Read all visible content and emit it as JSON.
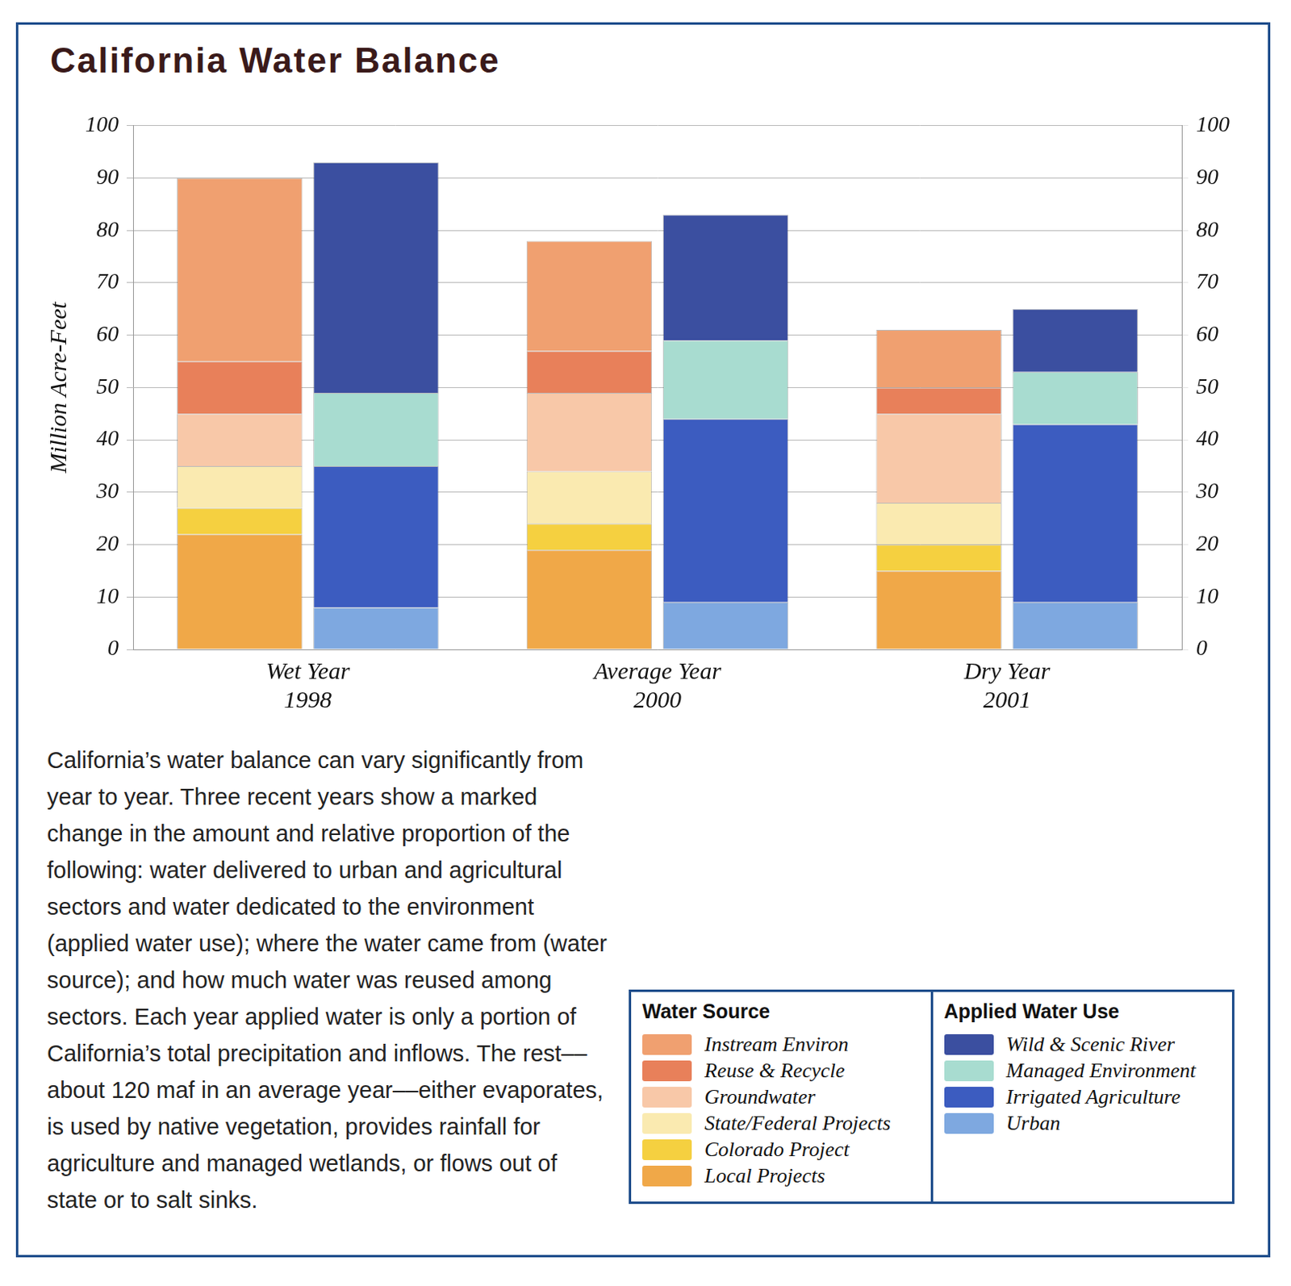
{
  "title": "California Water Balance",
  "caption": "California’s water balance can vary significantly from year to year.  Three recent years show a marked change in the amount and relative proportion of the following:  water delivered to urban and agricultural sectors and water dedicated to the environment (applied water use); where the water came from (water source); and how much water was reused among sectors. Each year applied water is only a portion of California’s total precipitation and inflows. The rest––about 120 maf in an average year––either evaporates, is used by native vegetation, provides rainfall for agriculture and managed wetlands, or flows out of state or to salt sinks.",
  "chart_data": {
    "type": "bar",
    "stacked": true,
    "grid": true,
    "y_label": "Million Acre-Feet",
    "categories": [
      "Wet Year 1998",
      "Average Year 2000",
      "Dry Year 2001"
    ],
    "ylim": [
      0,
      100
    ],
    "yticks": [
      0,
      10,
      20,
      30,
      40,
      50,
      60,
      70,
      80,
      90,
      100
    ],
    "y2lim": [
      0,
      100
    ],
    "y2ticks": [
      0,
      10,
      20,
      30,
      40,
      50,
      60,
      70,
      80,
      90,
      100
    ],
    "legend": "bottom-right",
    "series": [
      {
        "name": "Local Projects",
        "stack": "Water Source",
        "color": "#f0a848",
        "values": [
          22,
          19,
          15
        ]
      },
      {
        "name": "Colorado Project",
        "stack": "Water Source",
        "color": "#f5d040",
        "values": [
          5,
          5,
          5
        ]
      },
      {
        "name": "State/Federal Projects",
        "stack": "Water Source",
        "color": "#faeab0",
        "values": [
          8,
          10,
          8
        ]
      },
      {
        "name": "Groundwater",
        "stack": "Water Source",
        "color": "#f8c8a8",
        "values": [
          10,
          15,
          17
        ]
      },
      {
        "name": "Reuse & Recycle",
        "stack": "Water Source",
        "color": "#e8805a",
        "values": [
          10,
          8,
          5
        ]
      },
      {
        "name": "Instream Environ",
        "stack": "Water Source",
        "color": "#f0a070",
        "values": [
          35,
          21,
          11
        ]
      },
      {
        "name": "Urban",
        "stack": "Applied Water Use",
        "axis": "y2",
        "color": "#7ea8e0",
        "values": [
          8,
          9,
          9
        ]
      },
      {
        "name": "Irrigated Agriculture",
        "stack": "Applied Water Use",
        "axis": "y2",
        "color": "#3c5cc0",
        "values": [
          27,
          35,
          34
        ]
      },
      {
        "name": "Managed Environment",
        "stack": "Applied Water Use",
        "axis": "y2",
        "color": "#a8dcd0",
        "values": [
          14,
          15,
          10
        ]
      },
      {
        "name": "Wild & Scenic River",
        "stack": "Applied Water Use",
        "axis": "y2",
        "color": "#3b4fa0",
        "values": [
          44,
          24,
          12
        ]
      }
    ]
  }
}
